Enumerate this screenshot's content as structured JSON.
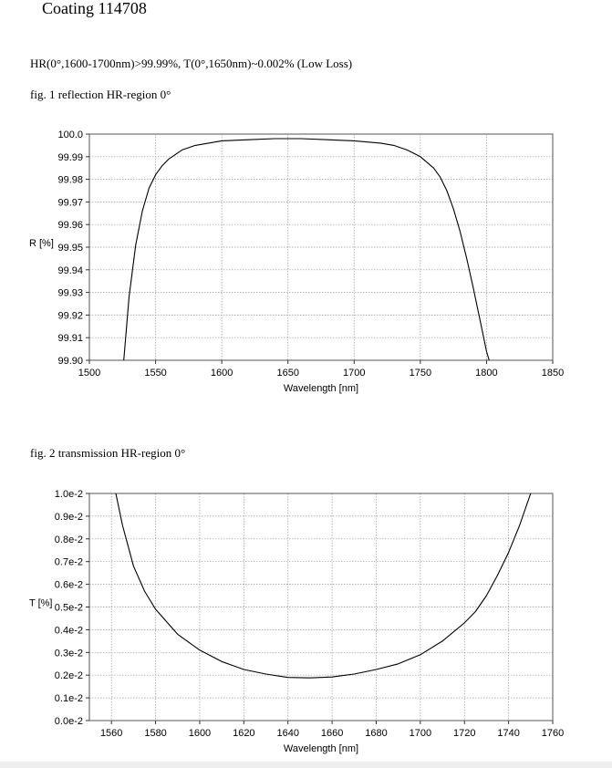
{
  "header": {
    "title": "Coating  114708",
    "spec": "HR(0°,1600-1700nm)>99.99%,  T(0°,1650nm)~0.002%  (Low Loss)"
  },
  "chart_data": [
    {
      "type": "line",
      "caption": "fig. 1 reflection HR-region  0°",
      "xlabel": "Wavelength [nm]",
      "ylabel": "R [%]",
      "xlim": [
        1500,
        1850
      ],
      "ylim": [
        99.9,
        100.0
      ],
      "xticks": [
        1500,
        1550,
        1600,
        1650,
        1700,
        1750,
        1800,
        1850
      ],
      "yticks": [
        99.9,
        99.91,
        99.92,
        99.93,
        99.94,
        99.95,
        99.96,
        99.97,
        99.98,
        99.99,
        100.0
      ],
      "ytick_labels": [
        "99.90",
        "99.91",
        "99.92",
        "99.93",
        "99.94",
        "99.95",
        "99.96",
        "99.97",
        "99.98",
        "99.99",
        "100.0"
      ],
      "xtick_labels": [
        "1500",
        "1550",
        "1600",
        "1650",
        "1700",
        "1750",
        "1800",
        "1850"
      ],
      "grid": true,
      "series": [
        {
          "x": [
            1526,
            1530,
            1535,
            1540,
            1545,
            1550,
            1555,
            1560,
            1570,
            1580,
            1590,
            1600,
            1620,
            1640,
            1650,
            1660,
            1680,
            1700,
            1720,
            1730,
            1740,
            1750,
            1760,
            1765,
            1770,
            1775,
            1780,
            1785,
            1790,
            1795,
            1800,
            1802
          ],
          "y": [
            99.9,
            99.928,
            99.951,
            99.966,
            99.976,
            99.982,
            99.986,
            99.989,
            99.993,
            99.995,
            99.996,
            99.997,
            99.9975,
            99.998,
            99.998,
            99.998,
            99.9975,
            99.997,
            99.996,
            99.995,
            99.993,
            99.99,
            99.985,
            99.981,
            99.975,
            99.967,
            99.957,
            99.945,
            99.932,
            99.918,
            99.904,
            99.9
          ]
        }
      ]
    },
    {
      "type": "line",
      "caption": "fig. 2 transmission HR-region  0°",
      "xlabel": "Wavelength [nm]",
      "ylabel": "T [%]",
      "xlim": [
        1550,
        1760
      ],
      "ylim": [
        0,
        1.0
      ],
      "xticks": [
        1560,
        1580,
        1600,
        1620,
        1640,
        1660,
        1680,
        1700,
        1720,
        1740,
        1760
      ],
      "yticks": [
        0,
        0.1,
        0.2,
        0.3,
        0.4,
        0.5,
        0.6,
        0.7,
        0.8,
        0.9,
        1.0
      ],
      "ytick_labels": [
        "0.0e-2",
        "0.1e-2",
        "0.2e-2",
        "0.3e-2",
        "0.4e-2",
        "0.5e-2",
        "0.6e-2",
        "0.7e-2",
        "0.8e-2",
        "0.9e-2",
        "1.0e-2"
      ],
      "xtick_labels": [
        "1560",
        "1580",
        "1600",
        "1620",
        "1640",
        "1660",
        "1680",
        "1700",
        "1720",
        "1740",
        "1760"
      ],
      "grid": true,
      "series": [
        {
          "x": [
            1562,
            1565,
            1570,
            1575,
            1580,
            1590,
            1600,
            1610,
            1620,
            1630,
            1640,
            1650,
            1660,
            1670,
            1680,
            1690,
            1700,
            1710,
            1720,
            1725,
            1730,
            1735,
            1740,
            1745,
            1750
          ],
          "y": [
            1.0,
            0.86,
            0.68,
            0.57,
            0.49,
            0.38,
            0.31,
            0.26,
            0.225,
            0.205,
            0.19,
            0.188,
            0.192,
            0.205,
            0.225,
            0.25,
            0.29,
            0.35,
            0.43,
            0.48,
            0.55,
            0.64,
            0.74,
            0.86,
            1.0
          ]
        }
      ]
    }
  ]
}
